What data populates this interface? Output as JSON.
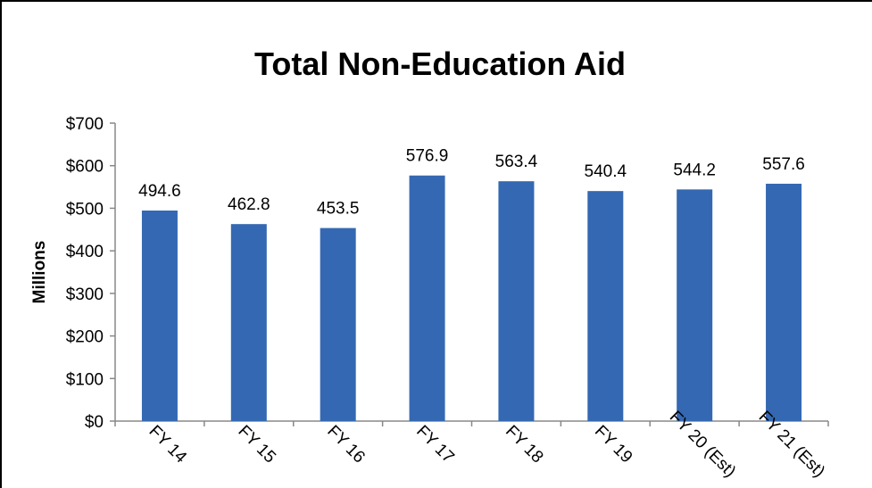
{
  "chart_data": {
    "type": "bar",
    "title": "Total Non-Education Aid",
    "xlabel": "",
    "ylabel": "Millions",
    "categories": [
      "FY 14",
      "FY 15",
      "FY 16",
      "FY 17",
      "FY 18",
      "FY 19",
      "FY 20 (Est)",
      "FY 21 (Est)"
    ],
    "values": [
      494.6,
      462.8,
      453.5,
      576.9,
      563.4,
      540.4,
      544.2,
      557.6
    ],
    "data_labels": [
      "494.6",
      "462.8",
      "453.5",
      "576.9",
      "563.4",
      "540.4",
      "544.2",
      "557.6"
    ],
    "yticks": [
      0,
      100,
      200,
      300,
      400,
      500,
      600,
      700
    ],
    "ytick_labels": [
      "$0",
      "$100",
      "$200",
      "$300",
      "$400",
      "$500",
      "$600",
      "$700"
    ],
    "ylim": [
      0,
      700
    ],
    "grid": false,
    "legend": "none",
    "colors": {
      "bar": "#3468B2",
      "axis": "#888888",
      "text": "#000000"
    }
  }
}
